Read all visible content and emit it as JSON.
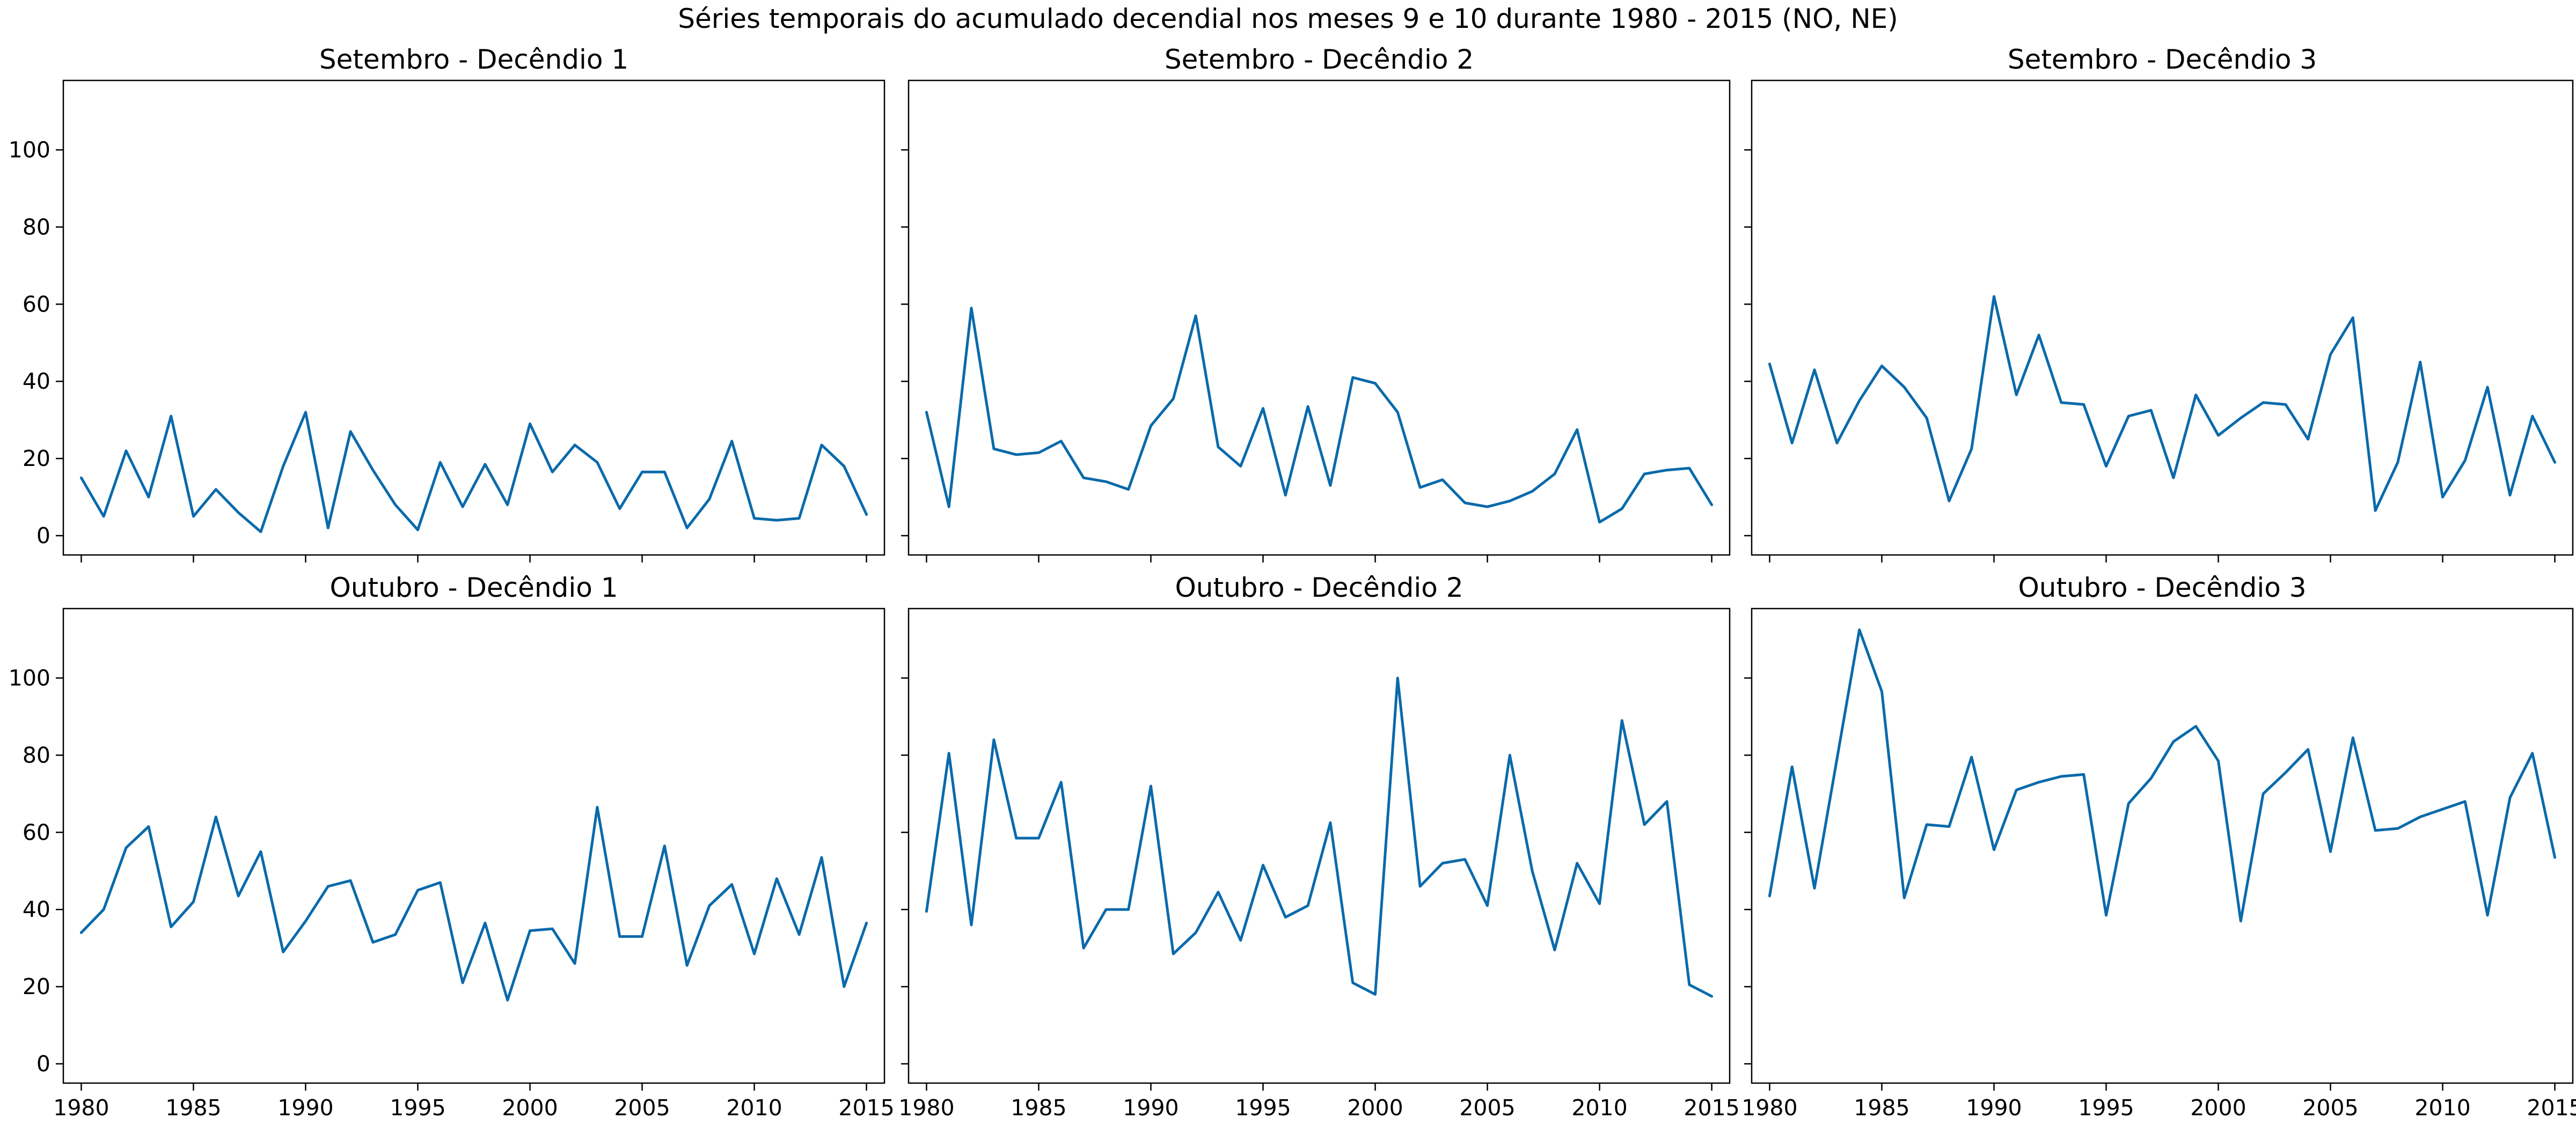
{
  "figure": {
    "suptitle": "Séries temporais do acumulado decendial nos meses 9 e 10 durante 1980 - 2015 (NO, NE)"
  },
  "style": {
    "line_color": "#0a6aab",
    "axes_color": "#000000",
    "background": "#ffffff"
  },
  "chart_data": [
    {
      "type": "line",
      "title": "Setembro - Decêndio 1",
      "x": [
        1980,
        1981,
        1982,
        1983,
        1984,
        1985,
        1986,
        1987,
        1988,
        1989,
        1990,
        1991,
        1992,
        1993,
        1994,
        1995,
        1996,
        1997,
        1998,
        1999,
        2000,
        2001,
        2002,
        2003,
        2004,
        2005,
        2006,
        2007,
        2008,
        2009,
        2010,
        2011,
        2012,
        2013,
        2014,
        2015
      ],
      "series": [
        {
          "values": [
            15,
            5,
            22,
            10,
            31,
            5,
            12,
            6,
            1,
            18,
            32,
            2,
            27,
            17,
            8,
            1.5,
            19,
            7.5,
            18.5,
            8,
            29,
            16.5,
            23.5,
            19,
            7,
            16.5,
            16.5,
            2,
            9.5,
            24.5,
            4.5,
            4,
            4.5,
            23.5,
            18,
            5.5
          ]
        }
      ],
      "xticks": [
        1980,
        1985,
        1990,
        1995,
        2000,
        2005,
        2010,
        2015
      ],
      "yticks": [
        0,
        20,
        40,
        60,
        80,
        100
      ],
      "xlim": [
        1979.2,
        2015.8
      ],
      "ylim": [
        -5,
        118
      ],
      "show_xticklabels": false,
      "show_yticklabels": true,
      "grid": false
    },
    {
      "type": "line",
      "title": "Setembro - Decêndio 2",
      "x": [
        1980,
        1981,
        1982,
        1983,
        1984,
        1985,
        1986,
        1987,
        1988,
        1989,
        1990,
        1991,
        1992,
        1993,
        1994,
        1995,
        1996,
        1997,
        1998,
        1999,
        2000,
        2001,
        2002,
        2003,
        2004,
        2005,
        2006,
        2007,
        2008,
        2009,
        2010,
        2011,
        2012,
        2013,
        2014,
        2015
      ],
      "series": [
        {
          "values": [
            32,
            7.5,
            59,
            22.5,
            21,
            21.5,
            24.5,
            15,
            14,
            12,
            28.5,
            35.5,
            57,
            23,
            18,
            33,
            10.5,
            33.5,
            13,
            41,
            39.5,
            32,
            12.5,
            14.5,
            8.5,
            7.5,
            9,
            11.5,
            16,
            27.5,
            3.5,
            7,
            16,
            17,
            17.5,
            8
          ]
        }
      ],
      "xticks": [
        1980,
        1985,
        1990,
        1995,
        2000,
        2005,
        2010,
        2015
      ],
      "yticks": [
        0,
        20,
        40,
        60,
        80,
        100
      ],
      "xlim": [
        1979.2,
        2015.8
      ],
      "ylim": [
        -5,
        118
      ],
      "show_xticklabels": false,
      "show_yticklabels": false,
      "grid": false
    },
    {
      "type": "line",
      "title": "Setembro - Decêndio 3",
      "x": [
        1980,
        1981,
        1982,
        1983,
        1984,
        1985,
        1986,
        1987,
        1988,
        1989,
        1990,
        1991,
        1992,
        1993,
        1994,
        1995,
        1996,
        1997,
        1998,
        1999,
        2000,
        2001,
        2002,
        2003,
        2004,
        2005,
        2006,
        2007,
        2008,
        2009,
        2010,
        2011,
        2012,
        2013,
        2014,
        2015
      ],
      "series": [
        {
          "values": [
            44.5,
            24,
            43,
            24,
            35,
            44,
            38.5,
            30.5,
            9,
            22.5,
            62,
            36.5,
            52,
            34.5,
            34,
            18,
            31,
            32.5,
            15,
            36.5,
            26,
            30.5,
            34.5,
            34,
            25,
            47,
            56.5,
            6.5,
            19,
            45,
            10,
            19.5,
            38.5,
            10.5,
            31,
            19
          ]
        }
      ],
      "xticks": [
        1980,
        1985,
        1990,
        1995,
        2000,
        2005,
        2010,
        2015
      ],
      "yticks": [
        0,
        20,
        40,
        60,
        80,
        100
      ],
      "xlim": [
        1979.2,
        2015.8
      ],
      "ylim": [
        -5,
        118
      ],
      "show_xticklabels": false,
      "show_yticklabels": false,
      "grid": false
    },
    {
      "type": "line",
      "title": "Outubro - Decêndio 1",
      "x": [
        1980,
        1981,
        1982,
        1983,
        1984,
        1985,
        1986,
        1987,
        1988,
        1989,
        1990,
        1991,
        1992,
        1993,
        1994,
        1995,
        1996,
        1997,
        1998,
        1999,
        2000,
        2001,
        2002,
        2003,
        2004,
        2005,
        2006,
        2007,
        2008,
        2009,
        2010,
        2011,
        2012,
        2013,
        2014,
        2015
      ],
      "series": [
        {
          "values": [
            34,
            40,
            56,
            61.5,
            35.5,
            42,
            64,
            43.5,
            55,
            29,
            37,
            46,
            47.5,
            31.5,
            33.5,
            45,
            47,
            21,
            36.5,
            16.5,
            34.5,
            35,
            26,
            66.5,
            33,
            33,
            56.5,
            25.5,
            41,
            46.5,
            28.5,
            48,
            33.5,
            53.5,
            20,
            36.5
          ]
        }
      ],
      "xticks": [
        1980,
        1985,
        1990,
        1995,
        2000,
        2005,
        2010,
        2015
      ],
      "yticks": [
        0,
        20,
        40,
        60,
        80,
        100
      ],
      "xlim": [
        1979.2,
        2015.8
      ],
      "ylim": [
        -5,
        118
      ],
      "show_xticklabels": true,
      "show_yticklabels": true,
      "grid": false
    },
    {
      "type": "line",
      "title": "Outubro - Decêndio 2",
      "x": [
        1980,
        1981,
        1982,
        1983,
        1984,
        1985,
        1986,
        1987,
        1988,
        1989,
        1990,
        1991,
        1992,
        1993,
        1994,
        1995,
        1996,
        1997,
        1998,
        1999,
        2000,
        2001,
        2002,
        2003,
        2004,
        2005,
        2006,
        2007,
        2008,
        2009,
        2010,
        2011,
        2012,
        2013,
        2014,
        2015
      ],
      "series": [
        {
          "values": [
            39.5,
            80.5,
            36,
            84,
            58.5,
            58.5,
            73,
            30,
            40,
            40,
            72,
            28.5,
            34,
            44.5,
            32,
            51.5,
            38,
            41,
            62.5,
            21,
            18,
            100,
            46,
            52,
            53,
            41,
            80,
            50,
            29.5,
            52,
            41.5,
            89,
            62,
            68,
            20.5,
            17.5
          ]
        }
      ],
      "xticks": [
        1980,
        1985,
        1990,
        1995,
        2000,
        2005,
        2010,
        2015
      ],
      "yticks": [
        0,
        20,
        40,
        60,
        80,
        100
      ],
      "xlim": [
        1979.2,
        2015.8
      ],
      "ylim": [
        -5,
        118
      ],
      "show_xticklabels": true,
      "show_yticklabels": false,
      "grid": false
    },
    {
      "type": "line",
      "title": "Outubro - Decêndio 3",
      "x": [
        1980,
        1981,
        1982,
        1983,
        1984,
        1985,
        1986,
        1987,
        1988,
        1989,
        1990,
        1991,
        1992,
        1993,
        1994,
        1995,
        1996,
        1997,
        1998,
        1999,
        2000,
        2001,
        2002,
        2003,
        2004,
        2005,
        2006,
        2007,
        2008,
        2009,
        2010,
        2011,
        2012,
        2013,
        2014,
        2015
      ],
      "series": [
        {
          "values": [
            43.5,
            77,
            45.5,
            79,
            112.5,
            96.5,
            43,
            62,
            61.5,
            79.5,
            55.5,
            71,
            73,
            74.5,
            75,
            38.5,
            67.5,
            74,
            83.5,
            87.5,
            78.5,
            37,
            70,
            75.5,
            81.5,
            55,
            84.5,
            60.5,
            61,
            64,
            66,
            68,
            38.5,
            69,
            80.5,
            53.5
          ]
        }
      ],
      "xticks": [
        1980,
        1985,
        1990,
        1995,
        2000,
        2005,
        2010,
        2015
      ],
      "yticks": [
        0,
        20,
        40,
        60,
        80,
        100
      ],
      "xlim": [
        1979.2,
        2015.8
      ],
      "ylim": [
        -5,
        118
      ],
      "show_xticklabels": true,
      "show_yticklabels": false,
      "grid": false
    }
  ]
}
